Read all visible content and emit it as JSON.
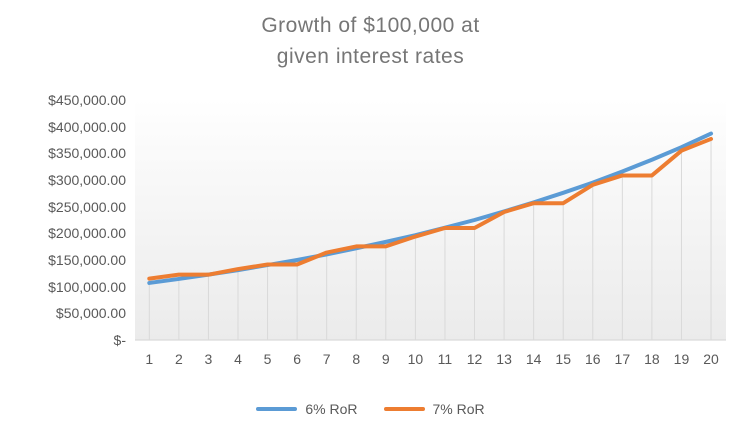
{
  "title": {
    "line1": "Growth of $100,000 at",
    "line2": "given interest rates"
  },
  "legend": {
    "items": [
      {
        "label": "6% RoR",
        "color": "#5B9BD5"
      },
      {
        "label": "7% RoR",
        "color": "#ED7D31"
      }
    ]
  },
  "y_axis": {
    "labels_top_to_bottom": [
      "$450,000.00",
      "$400,000.00",
      "$350,000.00",
      "$300,000.00",
      "$250,000.00",
      "$200,000.00",
      "$150,000.00",
      "$100,000.00",
      "$50,000.00",
      "$-"
    ],
    "min": 0,
    "max": 450000,
    "step": 50000
  },
  "x_axis": {
    "labels": [
      "1",
      "2",
      "3",
      "4",
      "5",
      "6",
      "7",
      "8",
      "9",
      "10",
      "11",
      "12",
      "13",
      "14",
      "15",
      "16",
      "17",
      "18",
      "19",
      "20"
    ]
  },
  "chart_data": {
    "type": "line",
    "title": "Growth of $100,000 at given interest rates",
    "xlabel": "",
    "ylabel": "",
    "x": [
      1,
      2,
      3,
      4,
      5,
      6,
      7,
      8,
      9,
      10,
      11,
      12,
      13,
      14,
      15,
      16,
      17,
      18,
      19,
      20
    ],
    "series": [
      {
        "name": "6% RoR",
        "color": "#5B9BD5",
        "values": [
          107000,
          114500,
          122500,
          131000,
          140500,
          150000,
          160500,
          172000,
          184000,
          196500,
          210500,
          225000,
          241000,
          258000,
          276000,
          295000,
          316000,
          338000,
          361500,
          387000
        ]
      },
      {
        "name": "7% RoR",
        "color": "#ED7D31",
        "values": [
          115000,
          122500,
          122500,
          133000,
          141500,
          141500,
          164000,
          175500,
          175500,
          194000,
          210000,
          210000,
          240000,
          256500,
          256500,
          291000,
          308500,
          308500,
          355000,
          377000
        ]
      }
    ],
    "ylim": [
      0,
      450000
    ],
    "y_tick_format": "$#,##0.00",
    "grid": "none",
    "drop_lines": "from 7% RoR series points to x-axis",
    "legend_position": "bottom",
    "plot_background": "vertical gradient white to light gray",
    "colors": {
      "title_text": "#767676",
      "axis_text": "#595959",
      "axis_line": "#d9d9d9",
      "drop_line": "#d9d9d9",
      "plot_bg_top": "#ffffff",
      "plot_bg_bottom": "#ebebeb"
    }
  }
}
